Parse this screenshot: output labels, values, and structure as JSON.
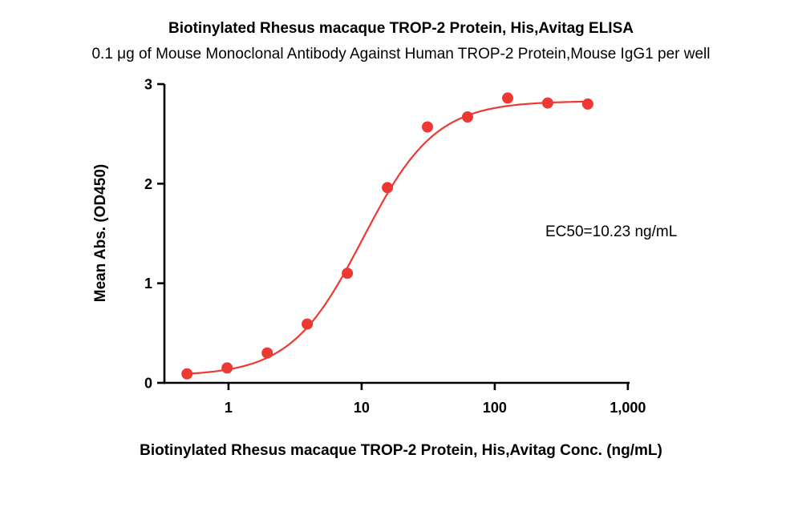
{
  "figure": {
    "title": "Biotinylated Rhesus macaque TROP-2 Protein, His,Avitag ELISA",
    "subtitle": "0.1 μg of Mouse Monoclonal Antibody Against Human TROP-2 Protein,Mouse IgG1 per well",
    "annotation": "EC50=10.23 ng/mL"
  },
  "chart_data": {
    "type": "scatter",
    "title": "Biotinylated Rhesus macaque TROP-2 Protein, His,Avitag ELISA",
    "subtitle": "0.1 μg of Mouse Monoclonal Antibody Against Human TROP-2 Protein,Mouse IgG1 per well",
    "xlabel": "Biotinylated Rhesus macaque TROP-2 Protein, His,Avitag Conc. (ng/mL)",
    "ylabel": "Mean Abs. (OD450)",
    "annotation": "EC50=10.23 ng/mL",
    "x_scale": "log10",
    "xlim": [
      0.33,
      1030
    ],
    "ylim": [
      0,
      3
    ],
    "grid": false,
    "legend": "none",
    "xticks": [
      {
        "value": 1,
        "label": "1"
      },
      {
        "value": 10,
        "label": "10"
      },
      {
        "value": 100,
        "label": "100"
      },
      {
        "value": 1000,
        "label": "1,000"
      }
    ],
    "yticks": [
      {
        "value": 0,
        "label": "0"
      },
      {
        "value": 1,
        "label": "1"
      },
      {
        "value": 2,
        "label": "2"
      },
      {
        "value": 3,
        "label": "3"
      }
    ],
    "points": {
      "x": [
        0.488,
        0.977,
        1.953,
        3.906,
        7.813,
        15.625,
        31.25,
        62.5,
        125,
        250,
        500
      ],
      "y": [
        0.09,
        0.15,
        0.3,
        0.59,
        1.1,
        1.96,
        2.57,
        2.67,
        2.86,
        2.81,
        2.8
      ]
    },
    "fit": {
      "model": "4PL",
      "bottom": 0.07,
      "top": 2.83,
      "ec50": 10.23,
      "hill": 1.6,
      "x_range": [
        0.45,
        520
      ]
    },
    "series_color": "#ed3833",
    "axis_color": "#000000"
  }
}
